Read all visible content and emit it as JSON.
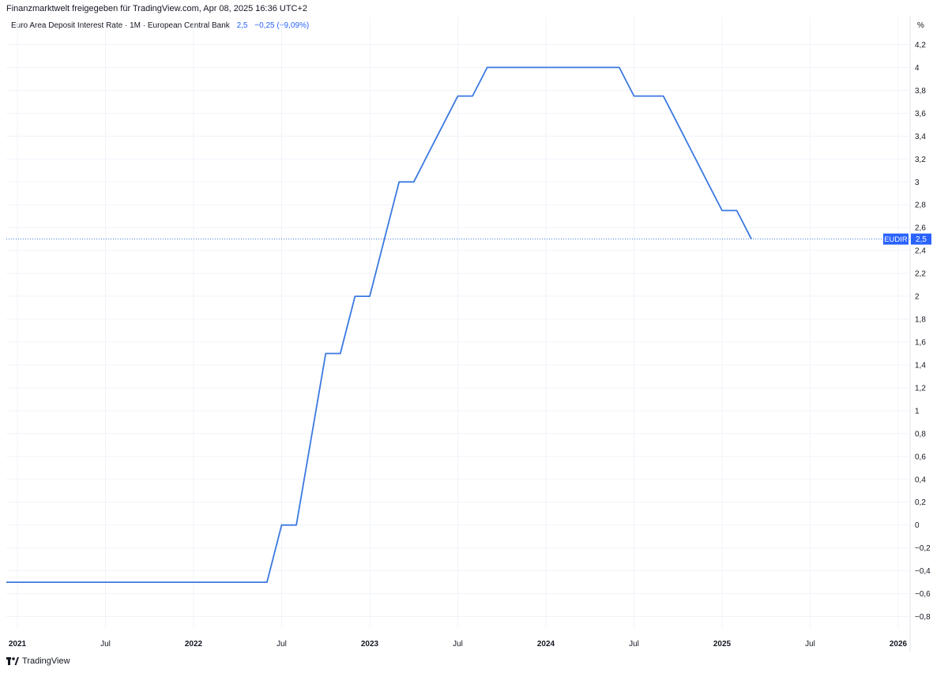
{
  "header": {
    "caption": "Finanzmarktwelt freigegeben für TradingView.com, Apr 08, 2025 16:36 UTC+2"
  },
  "legend": {
    "title": "Euro Area Deposit Interest Rate · 1M · European Central Bank",
    "last_value": "2,5",
    "change": "−0,25 (−9,09%)"
  },
  "axis": {
    "unit": "%"
  },
  "footer": {
    "brand": "TradingView",
    "brand_icon": "tradingview-logo-icon"
  },
  "colors": {
    "series": "#3a78e0",
    "grid": "#f0f3fa",
    "text": "#131722",
    "badge": "#2962ff"
  },
  "chart_data": {
    "type": "line",
    "x": [
      "2020-12",
      "2021-01",
      "2021-02",
      "2021-03",
      "2021-04",
      "2021-05",
      "2021-06",
      "2021-07",
      "2021-08",
      "2021-09",
      "2021-10",
      "2021-11",
      "2021-12",
      "2022-01",
      "2022-02",
      "2022-03",
      "2022-04",
      "2022-05",
      "2022-06",
      "2022-07",
      "2022-08",
      "2022-09",
      "2022-10",
      "2022-11",
      "2022-12",
      "2023-01",
      "2023-02",
      "2023-03",
      "2023-04",
      "2023-05",
      "2023-06",
      "2023-07",
      "2023-08",
      "2023-09",
      "2023-10",
      "2023-11",
      "2023-12",
      "2024-01",
      "2024-02",
      "2024-03",
      "2024-04",
      "2024-05",
      "2024-06",
      "2024-07",
      "2024-08",
      "2024-09",
      "2024-10",
      "2024-11",
      "2024-12",
      "2025-01",
      "2025-02",
      "2025-03"
    ],
    "series": [
      {
        "values": [
          -0.5,
          -0.5,
          -0.5,
          -0.5,
          -0.5,
          -0.5,
          -0.5,
          -0.5,
          -0.5,
          -0.5,
          -0.5,
          -0.5,
          -0.5,
          -0.5,
          -0.5,
          -0.5,
          -0.5,
          -0.5,
          -0.5,
          0,
          0,
          0.75,
          1.5,
          1.5,
          2,
          2,
          2.5,
          3,
          3,
          3.25,
          3.5,
          3.75,
          3.75,
          4,
          4,
          4,
          4,
          4,
          4,
          4,
          4,
          4,
          4,
          3.75,
          3.75,
          3.75,
          3.5,
          3.25,
          3,
          2.75,
          2.75,
          2.5
        ]
      }
    ],
    "ylim": [
      -0.9,
      4.3
    ],
    "y_ticks": [
      "−0,8",
      "−0,6",
      "−0,4",
      "−0,2",
      "0",
      "0,2",
      "0,4",
      "0,6",
      "0,8",
      "1",
      "1,2",
      "1,4",
      "1,6",
      "1,8",
      "2",
      "2,2",
      "2,4",
      "2,6",
      "2,8",
      "3",
      "3,2",
      "3,4",
      "3,6",
      "3,8",
      "4",
      "4,2"
    ],
    "x_ticks": [
      {
        "date": "2021-01",
        "label": "2021",
        "bold": true
      },
      {
        "date": "2021-07",
        "label": "Jul",
        "bold": false
      },
      {
        "date": "2022-01",
        "label": "2022",
        "bold": true
      },
      {
        "date": "2022-07",
        "label": "Jul",
        "bold": false
      },
      {
        "date": "2023-01",
        "label": "2023",
        "bold": true
      },
      {
        "date": "2023-07",
        "label": "Jul",
        "bold": false
      },
      {
        "date": "2024-01",
        "label": "2024",
        "bold": true
      },
      {
        "date": "2024-07",
        "label": "Jul",
        "bold": false
      },
      {
        "date": "2025-01",
        "label": "2025",
        "bold": true
      },
      {
        "date": "2025-07",
        "label": "Jul",
        "bold": false
      },
      {
        "date": "2026-01",
        "label": "2026",
        "bold": true
      }
    ],
    "last_value_line": 2.5,
    "badge": {
      "symbol": "EUDIR",
      "value": "2,5"
    },
    "grid": true
  }
}
